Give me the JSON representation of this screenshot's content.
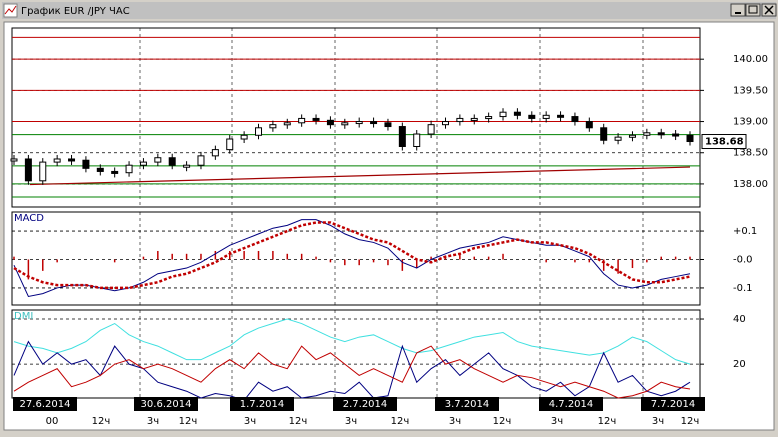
{
  "window": {
    "title": "График EUR /JPY ЧАС"
  },
  "chart_data": [
    {
      "type": "candlestick",
      "values": [
        138.4,
        138.05,
        138.35,
        138.4,
        138.38,
        138.25,
        138.2,
        138.18,
        138.3,
        138.35,
        138.42,
        138.3,
        138.3,
        138.45,
        138.55,
        138.72,
        138.78,
        138.9,
        138.95,
        138.98,
        139.05,
        139.02,
        138.95,
        138.98,
        139.0,
        138.98,
        138.92,
        138.6,
        138.8,
        138.95,
        139.0,
        139.05,
        139.05,
        139.08,
        139.15,
        139.1,
        139.05,
        139.1,
        139.08,
        139.0,
        138.9,
        138.7,
        138.75,
        138.78,
        138.82,
        138.8,
        138.78,
        138.68
      ],
      "color": "#000000",
      "last_price": 138.68,
      "levels": [
        {
          "color": "#c00000",
          "values": [
            140.35,
            140.0,
            139.5,
            139.0
          ]
        },
        {
          "color": "#008000",
          "values": [
            138.79,
            138.29,
            138.0,
            137.79
          ]
        }
      ],
      "trend_line": {
        "color": "#a00000",
        "values": [
          137.99,
          138.27
        ]
      },
      "ylim": [
        137.63,
        140.5
      ],
      "yticks": [
        {
          "value": 138,
          "label": "138.00"
        },
        {
          "value": 138.5,
          "label": "138.50"
        },
        {
          "value": 139,
          "label": "139.00"
        },
        {
          "value": 139.5,
          "label": "139.50"
        },
        {
          "value": 140,
          "label": "140.00"
        }
      ]
    },
    {
      "type": "macd",
      "title": "MACD",
      "series": [
        {
          "color": "#000080",
          "values": [
            -0.02,
            -0.13,
            -0.12,
            -0.1,
            -0.09,
            -0.09,
            -0.1,
            -0.11,
            -0.1,
            -0.08,
            -0.05,
            -0.04,
            -0.03,
            -0.01,
            0.02,
            0.05,
            0.07,
            0.09,
            0.11,
            0.12,
            0.14,
            0.14,
            0.12,
            0.09,
            0.07,
            0.06,
            0.04,
            -0.01,
            -0.03,
            0.0,
            0.02,
            0.04,
            0.05,
            0.06,
            0.08,
            0.07,
            0.06,
            0.05,
            0.05,
            0.03,
            0.01,
            -0.05,
            -0.09,
            -0.1,
            -0.09,
            -0.07,
            -0.06,
            -0.05
          ]
        },
        {
          "color": "#c00000",
          "values": [
            -0.03,
            -0.06,
            -0.08,
            -0.09,
            -0.09,
            -0.09,
            -0.1,
            -0.1,
            -0.1,
            -0.09,
            -0.08,
            -0.06,
            -0.05,
            -0.03,
            -0.01,
            0.02,
            0.04,
            0.06,
            0.08,
            0.1,
            0.12,
            0.13,
            0.13,
            0.11,
            0.09,
            0.07,
            0.06,
            0.03,
            0.0,
            -0.01,
            0.01,
            0.02,
            0.04,
            0.05,
            0.06,
            0.07,
            0.06,
            0.06,
            0.05,
            0.04,
            0.02,
            -0.01,
            -0.04,
            -0.07,
            -0.08,
            -0.08,
            -0.07,
            -0.06
          ]
        }
      ],
      "histogram": {
        "color": "#c00000",
        "values": [
          0.01,
          -0.07,
          -0.04,
          -0.01,
          0,
          0,
          0,
          -0.01,
          0,
          0.01,
          0.03,
          0.02,
          0.02,
          0.02,
          0.03,
          0.03,
          0.03,
          0.03,
          0.03,
          0.02,
          0.02,
          0.01,
          -0.01,
          -0.02,
          -0.02,
          -0.01,
          -0.02,
          -0.04,
          -0.03,
          0.01,
          0.01,
          0.02,
          0.01,
          0.01,
          0.02,
          0,
          0,
          -0.01,
          0,
          -0.01,
          -0.01,
          -0.04,
          -0.05,
          -0.03,
          -0.01,
          0.01,
          0.01,
          0.01
        ]
      },
      "ylim": [
        -0.16,
        0.167
      ],
      "yticks": [
        {
          "value": 0.1,
          "label": "+0.1"
        },
        {
          "value": 0,
          "label": "-0.0"
        },
        {
          "value": -0.1,
          "label": "-0.1"
        }
      ]
    },
    {
      "type": "dmi",
      "title": "DMI",
      "series": [
        {
          "color": "#40e0e0",
          "values": [
            30,
            28,
            27,
            25,
            27,
            30,
            35,
            38,
            33,
            30,
            28,
            25,
            22,
            22,
            25,
            28,
            33,
            36,
            38,
            40,
            38,
            35,
            32,
            30,
            32,
            33,
            30,
            27,
            25,
            26,
            28,
            30,
            32,
            33,
            34,
            30,
            28,
            27,
            26,
            25,
            24,
            25,
            28,
            32,
            30,
            26,
            22,
            20
          ]
        },
        {
          "color": "#000080",
          "values": [
            15,
            30,
            20,
            25,
            20,
            22,
            15,
            28,
            20,
            18,
            12,
            10,
            8,
            5,
            7,
            6,
            4,
            12,
            8,
            10,
            5,
            6,
            8,
            7,
            12,
            5,
            6,
            28,
            12,
            18,
            22,
            15,
            20,
            25,
            18,
            15,
            10,
            8,
            12,
            6,
            10,
            25,
            12,
            15,
            8,
            6,
            8,
            12
          ]
        },
        {
          "color": "#c00000",
          "values": [
            8,
            12,
            15,
            18,
            10,
            12,
            15,
            20,
            22,
            18,
            20,
            18,
            15,
            12,
            18,
            22,
            18,
            25,
            20,
            18,
            28,
            22,
            25,
            20,
            15,
            18,
            15,
            12,
            25,
            28,
            20,
            22,
            18,
            15,
            12,
            15,
            14,
            12,
            10,
            12,
            10,
            8,
            5,
            6,
            8,
            12,
            10,
            9
          ]
        }
      ],
      "ylim": [
        5,
        44
      ],
      "yticks": [
        20,
        40
      ]
    }
  ],
  "dates": [
    "27.6.2014",
    "30.6.2014",
    "1.7.2014",
    "2.7.2014",
    "3.7.2014",
    "4.7.2014",
    "7.7.2014"
  ],
  "hours": [
    "00",
    "12ч",
    "3ч",
    "12ч",
    "3ч",
    "12ч",
    "3ч",
    "12ч",
    "3ч",
    "12ч",
    "3ч",
    "12ч",
    "3ч",
    "12ч"
  ]
}
